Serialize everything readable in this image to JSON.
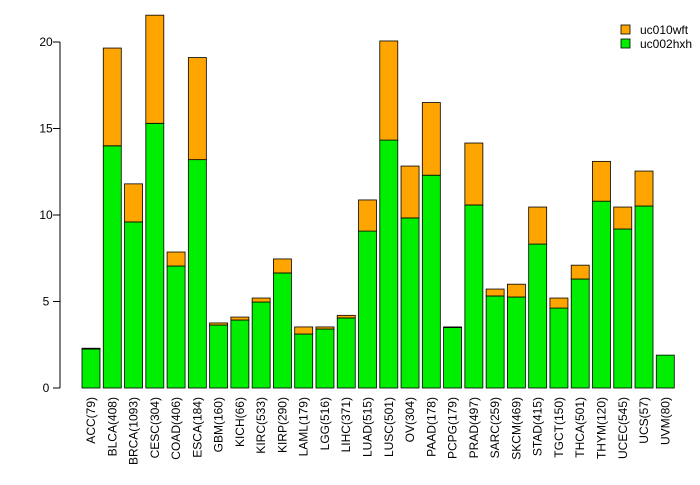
{
  "chart_data": {
    "type": "bar",
    "stacked": true,
    "title": "",
    "xlabel": "",
    "ylabel": "",
    "ylim": [
      0,
      21.6
    ],
    "yticks": [
      0,
      5,
      10,
      15,
      20
    ],
    "grid": false,
    "legend_position": "top-right",
    "categories": [
      "ACC(79)",
      "BLCA(408)",
      "BRCA(1093)",
      "CESC(304)",
      "COAD(406)",
      "ESCA(184)",
      "GBM(160)",
      "KICH(66)",
      "KIRC(533)",
      "KIRP(290)",
      "LAML(179)",
      "LGG(516)",
      "LIHC(371)",
      "LUAD(515)",
      "LUSC(501)",
      "OV(304)",
      "PAAD(178)",
      "PCPG(179)",
      "PRAD(497)",
      "SARC(259)",
      "SKCM(469)",
      "STAD(415)",
      "TGCT(150)",
      "THCA(501)",
      "THYM(120)",
      "UCEC(545)",
      "UCS(57)",
      "UVM(80)"
    ],
    "series": [
      {
        "name": "uc002hxh",
        "color": "#00ee00",
        "values": [
          2.25,
          14.0,
          9.6,
          15.3,
          7.05,
          13.2,
          3.64,
          3.93,
          4.97,
          6.65,
          3.12,
          3.41,
          4.05,
          9.07,
          14.33,
          9.83,
          12.3,
          3.5,
          10.58,
          5.32,
          5.26,
          8.32,
          4.62,
          6.3,
          10.8,
          9.19,
          10.52,
          1.9
        ]
      },
      {
        "name": "uc010wft",
        "color": "#ffa500",
        "values": [
          0.05,
          5.65,
          2.2,
          6.25,
          0.81,
          5.9,
          0.12,
          0.17,
          0.23,
          0.81,
          0.41,
          0.12,
          0.15,
          1.8,
          5.73,
          3.0,
          4.2,
          0.03,
          3.58,
          0.4,
          0.74,
          2.14,
          0.58,
          0.8,
          2.3,
          1.27,
          2.02,
          0.0
        ]
      }
    ],
    "legend": [
      "uc010wft",
      "uc002hxh"
    ]
  }
}
